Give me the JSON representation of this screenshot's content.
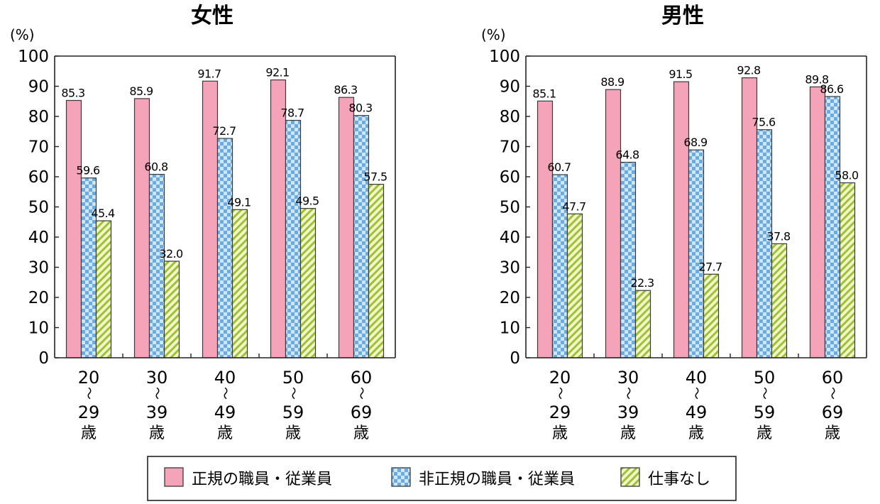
{
  "chart_data": [
    {
      "type": "bar",
      "title": "女性",
      "unit_label": "(%)",
      "ylim": [
        0,
        100
      ],
      "yticks": [
        0,
        10,
        20,
        30,
        40,
        50,
        60,
        70,
        80,
        90,
        100
      ],
      "categories": [
        {
          "from": "20",
          "sep": "～",
          "to": "29",
          "suffix": "歳"
        },
        {
          "from": "30",
          "sep": "～",
          "to": "39",
          "suffix": "歳"
        },
        {
          "from": "40",
          "sep": "～",
          "to": "49",
          "suffix": "歳"
        },
        {
          "from": "50",
          "sep": "～",
          "to": "59",
          "suffix": "歳"
        },
        {
          "from": "60",
          "sep": "～",
          "to": "69",
          "suffix": "歳"
        }
      ],
      "series": [
        {
          "name": "正規の職員・従業員",
          "values": [
            85.3,
            85.9,
            91.7,
            92.1,
            86.3
          ]
        },
        {
          "name": "非正規の職員・従業員",
          "values": [
            59.6,
            60.8,
            72.7,
            78.7,
            80.3
          ]
        },
        {
          "name": "仕事なし",
          "values": [
            45.4,
            32.0,
            49.1,
            49.5,
            57.5
          ]
        }
      ]
    },
    {
      "type": "bar",
      "title": "男性",
      "unit_label": "(%)",
      "ylim": [
        0,
        100
      ],
      "yticks": [
        0,
        10,
        20,
        30,
        40,
        50,
        60,
        70,
        80,
        90,
        100
      ],
      "categories": [
        {
          "from": "20",
          "sep": "～",
          "to": "29",
          "suffix": "歳"
        },
        {
          "from": "30",
          "sep": "～",
          "to": "39",
          "suffix": "歳"
        },
        {
          "from": "40",
          "sep": "～",
          "to": "49",
          "suffix": "歳"
        },
        {
          "from": "50",
          "sep": "～",
          "to": "59",
          "suffix": "歳"
        },
        {
          "from": "60",
          "sep": "～",
          "to": "69",
          "suffix": "歳"
        }
      ],
      "series": [
        {
          "name": "正規の職員・従業員",
          "values": [
            85.1,
            88.9,
            91.5,
            92.8,
            89.8
          ]
        },
        {
          "name": "非正規の職員・従業員",
          "values": [
            60.7,
            64.8,
            68.9,
            75.6,
            86.6
          ]
        },
        {
          "name": "仕事なし",
          "values": [
            47.7,
            22.3,
            27.7,
            37.8,
            58.0
          ]
        }
      ]
    }
  ],
  "legend": {
    "position": "bottom-center",
    "items": [
      {
        "label": "正規の職員・従業員",
        "pattern": "solid-pink"
      },
      {
        "label": "非正規の職員・従業員",
        "pattern": "blue-checker"
      },
      {
        "label": "仕事なし",
        "pattern": "green-diagonal-stripes"
      }
    ]
  },
  "colors": {
    "pink": "#f5a3b8",
    "blue_light": "#cfe6f8",
    "blue": "#6aace2",
    "green_light": "#f4f6c8",
    "green": "#9cc23a",
    "axis": "#222222"
  }
}
